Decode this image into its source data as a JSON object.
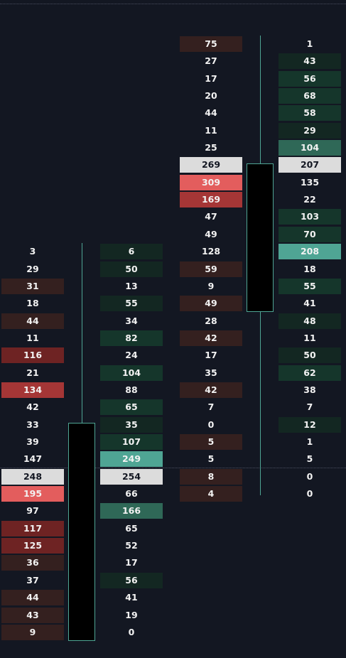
{
  "colors": {
    "background": "#131722",
    "neutral": "#131722",
    "poc": "#dcdcdc",
    "poc_text": "#131722",
    "candle_body": "#000000",
    "candle_border": "#4fa594",
    "red_1": "#34201f",
    "red_2": "#6e2323",
    "red_3": "#a53636",
    "red_4": "#e35d5d",
    "green_1": "#132722",
    "green_2": "#15362b",
    "green_3": "#2f6857",
    "green_4": "#4fa594"
  },
  "chart_data": {
    "type": "footprint",
    "title": "",
    "candles": [
      {
        "bid": [
          {
            "value": 3,
            "tone": "neutral"
          },
          {
            "value": 29,
            "tone": "neutral"
          },
          {
            "value": 31,
            "tone": "red_1"
          },
          {
            "value": 18,
            "tone": "neutral"
          },
          {
            "value": 44,
            "tone": "red_1"
          },
          {
            "value": 11,
            "tone": "neutral"
          },
          {
            "value": 116,
            "tone": "red_2"
          },
          {
            "value": 21,
            "tone": "neutral"
          },
          {
            "value": 134,
            "tone": "red_3"
          },
          {
            "value": 42,
            "tone": "neutral"
          },
          {
            "value": 33,
            "tone": "neutral"
          },
          {
            "value": 39,
            "tone": "neutral"
          },
          {
            "value": 147,
            "tone": "neutral"
          },
          {
            "value": 248,
            "tone": "poc"
          },
          {
            "value": 195,
            "tone": "red_4"
          },
          {
            "value": 97,
            "tone": "neutral"
          },
          {
            "value": 117,
            "tone": "red_2"
          },
          {
            "value": 125,
            "tone": "red_2"
          },
          {
            "value": 36,
            "tone": "red_1"
          },
          {
            "value": 37,
            "tone": "neutral"
          },
          {
            "value": 44,
            "tone": "red_1"
          },
          {
            "value": 43,
            "tone": "red_1"
          },
          {
            "value": 9,
            "tone": "red_1"
          }
        ],
        "ask": [
          {
            "value": 6,
            "tone": "green_1"
          },
          {
            "value": 50,
            "tone": "green_1"
          },
          {
            "value": 13,
            "tone": "neutral"
          },
          {
            "value": 55,
            "tone": "green_1"
          },
          {
            "value": 34,
            "tone": "neutral"
          },
          {
            "value": 82,
            "tone": "green_2"
          },
          {
            "value": 24,
            "tone": "neutral"
          },
          {
            "value": 104,
            "tone": "green_2"
          },
          {
            "value": 88,
            "tone": "neutral"
          },
          {
            "value": 65,
            "tone": "green_2"
          },
          {
            "value": 35,
            "tone": "green_1"
          },
          {
            "value": 107,
            "tone": "green_2"
          },
          {
            "value": 249,
            "tone": "green_4"
          },
          {
            "value": 254,
            "tone": "poc"
          },
          {
            "value": 66,
            "tone": "neutral"
          },
          {
            "value": 166,
            "tone": "green_3"
          },
          {
            "value": 65,
            "tone": "neutral"
          },
          {
            "value": 52,
            "tone": "neutral"
          },
          {
            "value": 17,
            "tone": "neutral"
          },
          {
            "value": 56,
            "tone": "green_1"
          },
          {
            "value": 41,
            "tone": "neutral"
          },
          {
            "value": 19,
            "tone": "neutral"
          },
          {
            "value": 0,
            "tone": "neutral"
          }
        ],
        "first_level": 0,
        "open_level": 23.5,
        "close_level": 10.5,
        "high_level": 22.5,
        "low_level": 0
      },
      {
        "bid": [
          {
            "value": 75,
            "tone": "red_1"
          },
          {
            "value": 27,
            "tone": "neutral"
          },
          {
            "value": 17,
            "tone": "neutral"
          },
          {
            "value": 20,
            "tone": "neutral"
          },
          {
            "value": 44,
            "tone": "neutral"
          },
          {
            "value": 11,
            "tone": "neutral"
          },
          {
            "value": 25,
            "tone": "neutral"
          },
          {
            "value": 269,
            "tone": "poc"
          },
          {
            "value": 309,
            "tone": "red_4"
          },
          {
            "value": 169,
            "tone": "red_3"
          },
          {
            "value": 47,
            "tone": "neutral"
          },
          {
            "value": 49,
            "tone": "neutral"
          },
          {
            "value": 128,
            "tone": "neutral"
          },
          {
            "value": 59,
            "tone": "red_1"
          },
          {
            "value": 9,
            "tone": "neutral"
          },
          {
            "value": 49,
            "tone": "red_1"
          },
          {
            "value": 28,
            "tone": "neutral"
          },
          {
            "value": 42,
            "tone": "red_1"
          },
          {
            "value": 17,
            "tone": "neutral"
          },
          {
            "value": 35,
            "tone": "neutral"
          },
          {
            "value": 42,
            "tone": "red_1"
          },
          {
            "value": 7,
            "tone": "neutral"
          },
          {
            "value": 0,
            "tone": "neutral"
          },
          {
            "value": 5,
            "tone": "red_1"
          },
          {
            "value": 5,
            "tone": "neutral"
          },
          {
            "value": 8,
            "tone": "red_1"
          },
          {
            "value": 4,
            "tone": "red_1"
          }
        ],
        "ask": [
          {
            "value": 1,
            "tone": "neutral"
          },
          {
            "value": 43,
            "tone": "green_1"
          },
          {
            "value": 56,
            "tone": "green_2"
          },
          {
            "value": 68,
            "tone": "green_2"
          },
          {
            "value": 58,
            "tone": "green_2"
          },
          {
            "value": 29,
            "tone": "green_1"
          },
          {
            "value": 104,
            "tone": "green_3"
          },
          {
            "value": 207,
            "tone": "poc"
          },
          {
            "value": 135,
            "tone": "neutral"
          },
          {
            "value": 22,
            "tone": "neutral"
          },
          {
            "value": 103,
            "tone": "green_2"
          },
          {
            "value": 70,
            "tone": "green_2"
          },
          {
            "value": 208,
            "tone": "green_4"
          },
          {
            "value": 18,
            "tone": "neutral"
          },
          {
            "value": 55,
            "tone": "green_2"
          },
          {
            "value": 41,
            "tone": "neutral"
          },
          {
            "value": 48,
            "tone": "green_1"
          },
          {
            "value": 11,
            "tone": "neutral"
          },
          {
            "value": 50,
            "tone": "green_1"
          },
          {
            "value": 62,
            "tone": "green_2"
          },
          {
            "value": 38,
            "tone": "neutral"
          },
          {
            "value": 7,
            "tone": "neutral"
          },
          {
            "value": 12,
            "tone": "green_1"
          },
          {
            "value": 1,
            "tone": "neutral"
          },
          {
            "value": 5,
            "tone": "neutral"
          },
          {
            "value": 0,
            "tone": "neutral"
          },
          {
            "value": 0,
            "tone": "neutral"
          }
        ],
        "first_level": 12,
        "open_level": 16.5,
        "close_level": 7.5,
        "high_level": 12.5,
        "low_level": -13.5
      }
    ]
  }
}
